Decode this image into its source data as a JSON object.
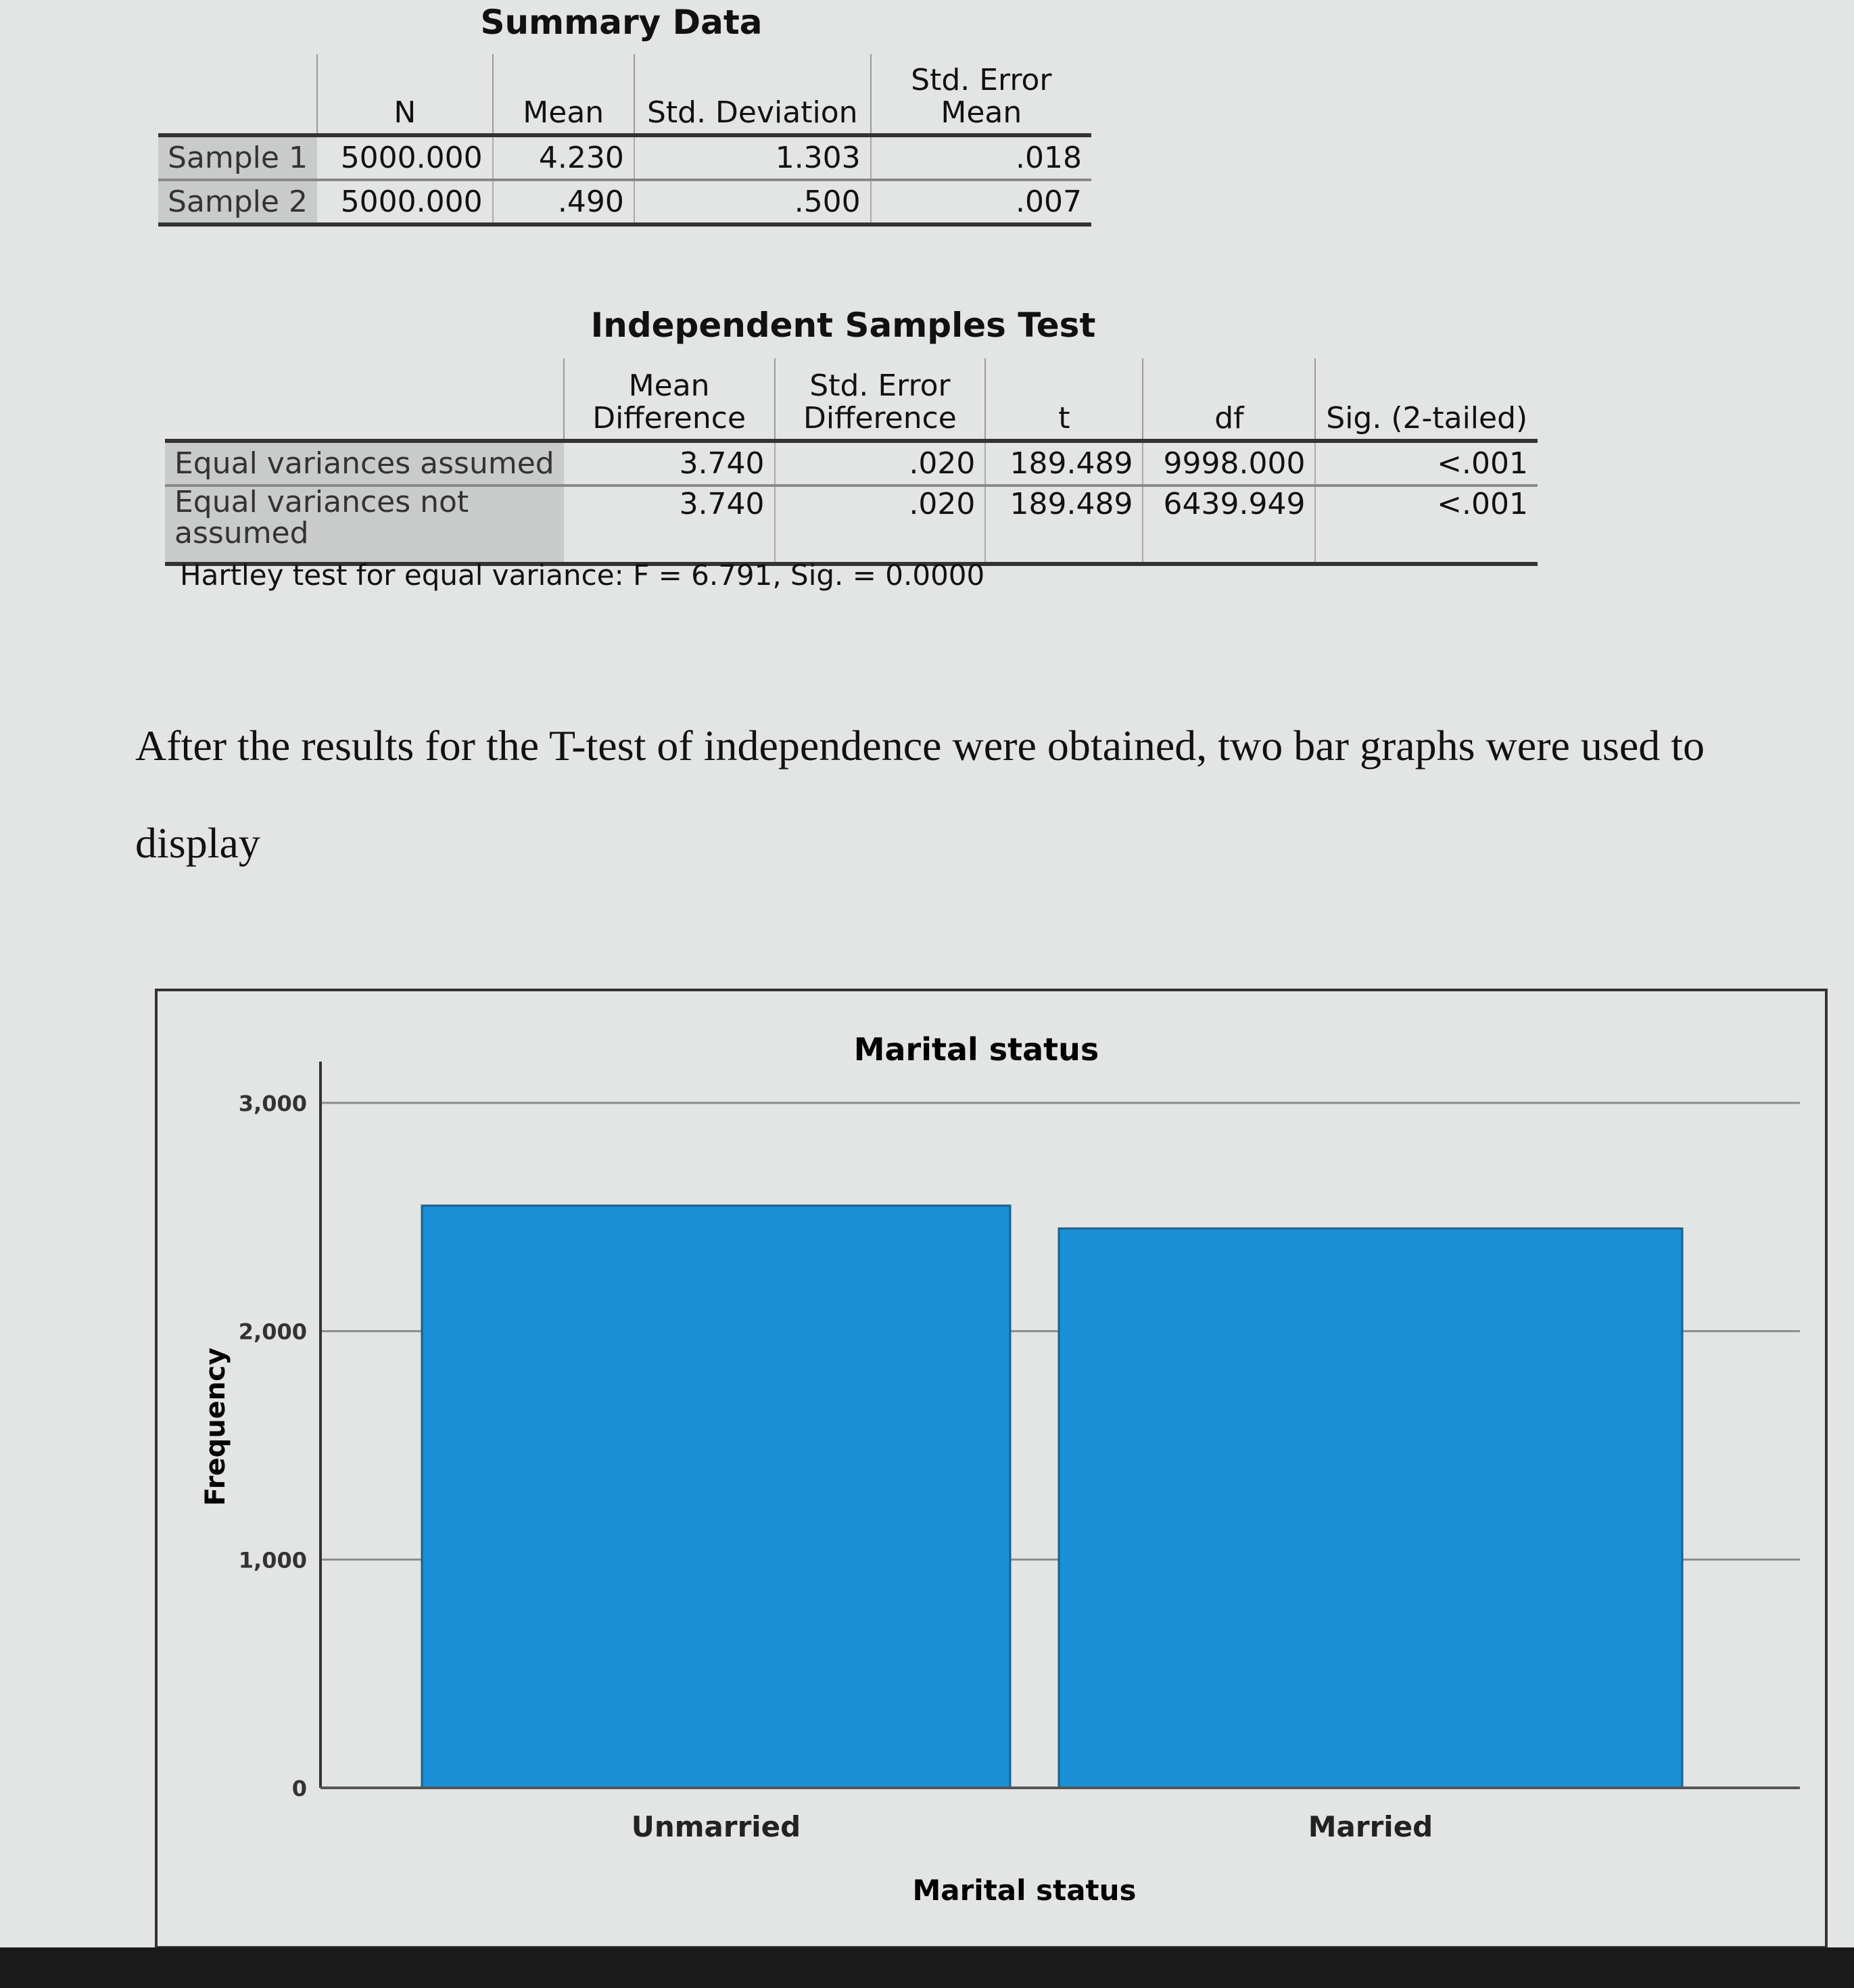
{
  "summary": {
    "title": "Summary Data",
    "headers": [
      "",
      "N",
      "Mean",
      "Std. Deviation",
      "Std. Error Mean"
    ],
    "rows": [
      {
        "label": "Sample 1",
        "n": "5000.000",
        "mean": "4.230",
        "sd": "1.303",
        "se": ".018"
      },
      {
        "label": "Sample 2",
        "n": "5000.000",
        "mean": ".490",
        "sd": ".500",
        "se": ".007"
      }
    ]
  },
  "ttest": {
    "title": "Independent Samples Test",
    "headers": [
      "",
      "Mean Difference",
      "Std. Error Difference",
      "t",
      "df",
      "Sig. (2-tailed)"
    ],
    "rows": [
      {
        "label": "Equal variances assumed",
        "md": "3.740",
        "se": ".020",
        "t": "189.489",
        "df": "9998.000",
        "sig": "<.001"
      },
      {
        "label": "Equal variances not assumed",
        "md": "3.740",
        "se": ".020",
        "t": "189.489",
        "df": "6439.949",
        "sig": "<.001"
      }
    ],
    "footnote": "Hartley test for equal variance: F = 6.791, Sig. = 0.0000"
  },
  "paragraph": {
    "line1": "After the results for the T-test of independence were obtained, two bar graphs were used to",
    "line2": "display"
  },
  "chart_data": {
    "type": "bar",
    "title": "Marital status",
    "xlabel": "Marital status",
    "ylabel": "Frequency",
    "categories": [
      "Unmarried",
      "Married"
    ],
    "values": [
      2550,
      2450
    ],
    "ylim": [
      0,
      3000
    ],
    "yticks": [
      "0",
      "1,000",
      "2,000",
      "3,000"
    ],
    "grid": true,
    "bar_color": "#1a8fd6"
  }
}
